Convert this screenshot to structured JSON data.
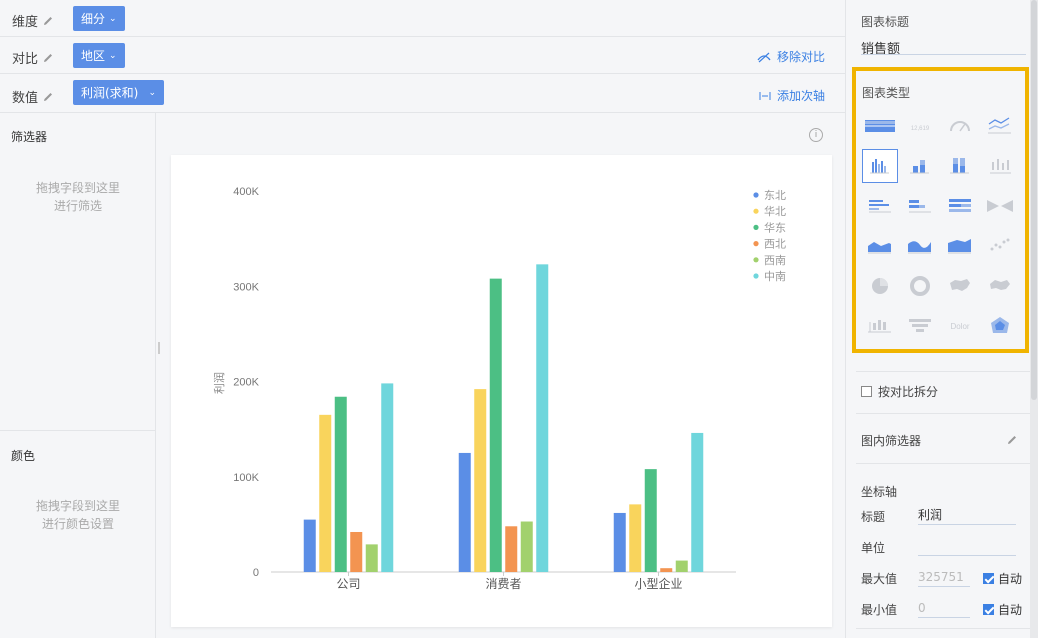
{
  "shelves": {
    "dimension": {
      "label": "维度",
      "pill": "细分"
    },
    "compare": {
      "label": "对比",
      "pill": "地区",
      "action": "移除对比"
    },
    "value": {
      "label": "数值",
      "pill": "利润(求和)",
      "action": "添加次轴"
    }
  },
  "filter_panel": {
    "title": "筛选器",
    "hint_line1": "拖拽字段到这里",
    "hint_line2": "进行筛选"
  },
  "color_panel": {
    "title": "颜色",
    "hint_line1": "拖拽字段到这里",
    "hint_line2": "进行颜色设置"
  },
  "chart_data": {
    "type": "bar",
    "categories": [
      "公司",
      "消费者",
      "小型企业"
    ],
    "ylabel": "利润",
    "ylim": [
      0,
      400000
    ],
    "yticks": [
      "0",
      "100K",
      "200K",
      "300K",
      "400K"
    ],
    "grid": false,
    "legend_position": "top-right",
    "series": [
      {
        "name": "东北",
        "color": "#5b8ee6",
        "values": [
          55000,
          125000,
          62000
        ]
      },
      {
        "name": "华北",
        "color": "#f9d45c",
        "values": [
          165000,
          192000,
          71000
        ]
      },
      {
        "name": "华东",
        "color": "#4cbf84",
        "values": [
          184000,
          308000,
          108000
        ]
      },
      {
        "name": "西北",
        "color": "#f39451",
        "values": [
          42000,
          48000,
          4000
        ]
      },
      {
        "name": "西南",
        "color": "#a2d16d",
        "values": [
          29000,
          53000,
          12000
        ]
      },
      {
        "name": "中南",
        "color": "#6fd6dc",
        "values": [
          198000,
          323000,
          146000
        ]
      }
    ]
  },
  "right_panel": {
    "chart_title_label": "图表标题",
    "chart_title_value": "销售额",
    "chart_type_label": "图表类型",
    "chart_type_icons": [
      "table-icon",
      "kpi-number-icon",
      "gauge-icon",
      "line-chart-icon",
      "grouped-bar-icon",
      "stacked-bar-icon",
      "percent-stacked-bar-icon",
      "range-bar-icon",
      "horizontal-bar-icon",
      "horizontal-stacked-bar-icon",
      "horizontal-percent-bar-icon",
      "ribbon-icon",
      "area-chart-icon",
      "stacked-area-icon",
      "percent-area-icon",
      "scatter-icon",
      "pie-icon",
      "donut-icon",
      "map-icon",
      "filled-map-icon",
      "boxplot-icon",
      "funnel-icon",
      "word-cloud-icon",
      "radar-icon"
    ],
    "kpi_icon_text": "12,619",
    "wordcloud_icon_text": "Dolor",
    "split_by_compare": "按对比拆分",
    "inner_filter": "图内筛选器",
    "axis_section": "坐标轴",
    "axis_title_label": "标题",
    "axis_title_value": "利润",
    "unit_label": "单位",
    "unit_value": "",
    "max_label": "最大值",
    "max_value": "325751",
    "min_label": "最小值",
    "min_value": "0",
    "auto_label": "自动"
  },
  "colors": {
    "accent": "#5b8ee6",
    "link": "#3b80e3",
    "highlight": "#f0b400"
  }
}
